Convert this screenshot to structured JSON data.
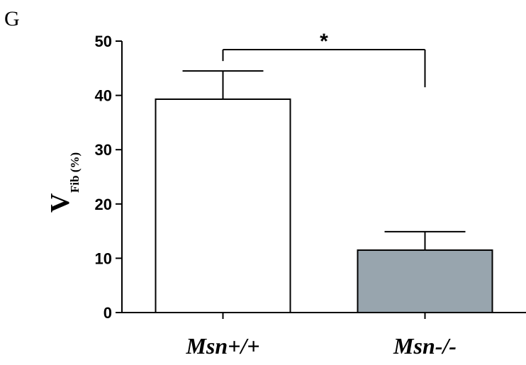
{
  "panel_label": "G",
  "chart_data": {
    "type": "bar",
    "categories": [
      "Msn+/+",
      "Msn-/-"
    ],
    "values": [
      39.3,
      11.5
    ],
    "errors": [
      5.2,
      3.4
    ],
    "bar_colors": [
      "#ffffff",
      "#98a5ae"
    ],
    "ylabel": "V",
    "ylabel_subscript": "Fib (%)",
    "ylim": [
      0,
      50
    ],
    "yticks": [
      "0",
      "10",
      "20",
      "30",
      "40",
      "50"
    ],
    "significance": {
      "label": "*",
      "between": [
        0,
        1
      ]
    },
    "grid": false
  }
}
